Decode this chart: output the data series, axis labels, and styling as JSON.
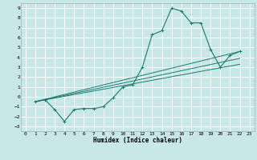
{
  "xlabel": "Humidex (Indice chaleur)",
  "background_color": "#c8e8e8",
  "grid_color": "#ffffff",
  "line_color": "#1a7a6e",
  "xlim": [
    -0.5,
    23.5
  ],
  "ylim": [
    -3.5,
    9.5
  ],
  "xticks": [
    0,
    1,
    2,
    3,
    4,
    5,
    6,
    7,
    8,
    9,
    10,
    11,
    12,
    13,
    14,
    15,
    16,
    17,
    18,
    19,
    20,
    21,
    22,
    23
  ],
  "yticks": [
    -3,
    -2,
    -1,
    0,
    1,
    2,
    3,
    4,
    5,
    6,
    7,
    8,
    9
  ],
  "curve1_x": [
    1,
    2,
    3,
    4,
    5,
    6,
    7,
    8,
    9,
    10,
    11,
    12,
    13,
    14,
    15,
    16,
    17,
    18,
    19,
    20,
    21,
    22
  ],
  "curve1_y": [
    -0.5,
    -0.3,
    -1.3,
    -2.5,
    -1.3,
    -1.2,
    -1.2,
    -1.0,
    -0.1,
    1.0,
    1.2,
    3.0,
    6.3,
    6.7,
    9.0,
    8.7,
    7.5,
    7.5,
    4.8,
    3.0,
    4.2,
    4.6
  ],
  "straight_lines": [
    {
      "x": [
        1,
        22
      ],
      "y": [
        -0.5,
        4.6
      ]
    },
    {
      "x": [
        1,
        22
      ],
      "y": [
        -0.5,
        3.9
      ]
    },
    {
      "x": [
        1,
        22
      ],
      "y": [
        -0.5,
        3.3
      ]
    }
  ]
}
